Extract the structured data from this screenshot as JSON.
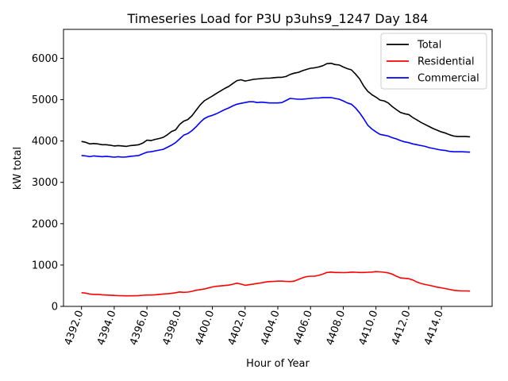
{
  "chart_data": {
    "type": "line",
    "title": "Timeseries Load for P3U p3uhs9_1247  Day 184",
    "xlabel": "Hour of Year",
    "ylabel": "kW total",
    "xlim": [
      4390.9,
      4417.1
    ],
    "ylim": [
      0,
      6700
    ],
    "x_ticks": [
      4392,
      4394,
      4396,
      4398,
      4400,
      4402,
      4404,
      4406,
      4408,
      4410,
      4412,
      4414
    ],
    "x_tick_labels": [
      "4392.0",
      "4394.0",
      "4396.0",
      "4398.0",
      "4400.0",
      "4402.0",
      "4404.0",
      "4406.0",
      "4408.0",
      "4410.0",
      "4412.0",
      "4414.0"
    ],
    "y_ticks": [
      0,
      1000,
      2000,
      3000,
      4000,
      5000,
      6000
    ],
    "y_tick_labels": [
      "0",
      "1000",
      "2000",
      "3000",
      "4000",
      "5000",
      "6000"
    ],
    "legend_position": "top-right",
    "x": [
      4392,
      4392.25,
      4392.5,
      4392.75,
      4393,
      4393.25,
      4393.5,
      4393.75,
      4394,
      4394.25,
      4394.5,
      4394.75,
      4395,
      4395.25,
      4395.5,
      4395.75,
      4396,
      4396.25,
      4396.5,
      4396.75,
      4397,
      4397.25,
      4397.5,
      4397.75,
      4398,
      4398.25,
      4398.5,
      4398.75,
      4399,
      4399.25,
      4399.5,
      4399.75,
      4400,
      4400.25,
      4400.5,
      4400.75,
      4401,
      4401.25,
      4401.5,
      4401.75,
      4402,
      4402.25,
      4402.5,
      4402.75,
      4403,
      4403.25,
      4403.5,
      4403.75,
      4404,
      4404.25,
      4404.5,
      4404.75,
      4405,
      4405.25,
      4405.5,
      4405.75,
      4406,
      4406.25,
      4406.5,
      4406.75,
      4407,
      4407.25,
      4407.5,
      4407.75,
      4408,
      4408.25,
      4408.5,
      4408.75,
      4409,
      4409.25,
      4409.5,
      4409.75,
      4410,
      4410.25,
      4410.5,
      4410.75,
      4411,
      4411.25,
      4411.5,
      4411.75,
      4412,
      4412.25,
      4412.5,
      4412.75,
      4413,
      4413.25,
      4413.5,
      4413.75,
      4414,
      4414.25,
      4414.5,
      4414.75,
      4415,
      4415.25,
      4415.5,
      4415.75
    ],
    "series": [
      {
        "name": "Total",
        "color": "#000000",
        "values": [
          3990,
          3970,
          3930,
          3940,
          3930,
          3910,
          3910,
          3900,
          3880,
          3890,
          3880,
          3870,
          3890,
          3900,
          3910,
          3950,
          4020,
          4010,
          4040,
          4060,
          4090,
          4150,
          4230,
          4270,
          4400,
          4480,
          4520,
          4610,
          4740,
          4870,
          4970,
          5030,
          5090,
          5150,
          5210,
          5270,
          5320,
          5390,
          5460,
          5480,
          5450,
          5470,
          5490,
          5500,
          5510,
          5520,
          5520,
          5530,
          5540,
          5540,
          5560,
          5610,
          5640,
          5660,
          5700,
          5730,
          5760,
          5770,
          5790,
          5820,
          5870,
          5880,
          5850,
          5840,
          5790,
          5750,
          5720,
          5620,
          5500,
          5330,
          5200,
          5120,
          5060,
          4990,
          4970,
          4920,
          4830,
          4760,
          4690,
          4660,
          4640,
          4570,
          4510,
          4450,
          4400,
          4350,
          4300,
          4260,
          4220,
          4190,
          4150,
          4120,
          4110,
          4110,
          4110,
          4100
        ]
      },
      {
        "name": "Residential",
        "color": "#ff0000",
        "values": [
          330,
          320,
          300,
          290,
          290,
          280,
          275,
          270,
          265,
          260,
          258,
          255,
          255,
          258,
          262,
          268,
          275,
          275,
          280,
          290,
          300,
          305,
          315,
          330,
          350,
          340,
          345,
          365,
          390,
          405,
          420,
          445,
          470,
          485,
          495,
          505,
          515,
          535,
          560,
          540,
          510,
          525,
          540,
          555,
          570,
          590,
          600,
          605,
          610,
          610,
          605,
          600,
          610,
          650,
          690,
          720,
          730,
          730,
          750,
          780,
          820,
          830,
          820,
          820,
          815,
          820,
          830,
          825,
          820,
          820,
          825,
          830,
          840,
          835,
          825,
          810,
          780,
          730,
          690,
          680,
          670,
          640,
          590,
          555,
          530,
          510,
          490,
          465,
          450,
          430,
          410,
          390,
          380,
          375,
          375,
          370
        ]
      },
      {
        "name": "Commercial",
        "color": "#0000ff",
        "values": [
          3650,
          3640,
          3620,
          3640,
          3630,
          3620,
          3630,
          3620,
          3610,
          3620,
          3610,
          3615,
          3630,
          3640,
          3650,
          3690,
          3730,
          3740,
          3760,
          3780,
          3800,
          3850,
          3900,
          3960,
          4050,
          4140,
          4180,
          4250,
          4340,
          4450,
          4540,
          4590,
          4620,
          4660,
          4710,
          4760,
          4800,
          4850,
          4890,
          4910,
          4930,
          4950,
          4950,
          4930,
          4940,
          4930,
          4920,
          4920,
          4920,
          4930,
          4980,
          5030,
          5020,
          5010,
          5010,
          5020,
          5030,
          5040,
          5040,
          5050,
          5050,
          5050,
          5030,
          5010,
          4970,
          4920,
          4890,
          4800,
          4680,
          4540,
          4380,
          4290,
          4220,
          4160,
          4140,
          4120,
          4080,
          4050,
          4010,
          3980,
          3960,
          3930,
          3910,
          3890,
          3870,
          3840,
          3820,
          3800,
          3780,
          3770,
          3750,
          3740,
          3740,
          3740,
          3735,
          3730
        ]
      }
    ]
  }
}
